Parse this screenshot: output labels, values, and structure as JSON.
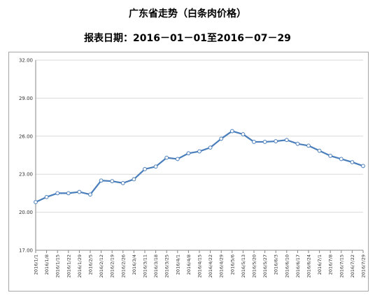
{
  "title": "广东省走势（白条肉价格）",
  "subtitle": "报表日期：2016－01－01至2016－07－29",
  "chart_data": {
    "type": "line",
    "title": "广东省走势（白条肉价格）",
    "subtitle": "报表日期：2016－01－01至2016－07－29",
    "xlabel": "",
    "ylabel": "",
    "ylim": [
      17.0,
      32.0
    ],
    "yticks": [
      "17.00",
      "20.00",
      "23.00",
      "26.00",
      "29.00",
      "32.00"
    ],
    "grid": "horizontal",
    "legend": "none",
    "line_color": "#4a7ebb",
    "categories": [
      "2016/1/1",
      "2016/1/8",
      "2016/1/15",
      "2016/1/22",
      "2016/1/29",
      "2016/2/5",
      "2016/2/12",
      "2016/2/19",
      "2016/2/26",
      "2016/3/4",
      "2016/3/11",
      "2016/3/18",
      "2016/3/25",
      "2016/4/1",
      "2016/4/8",
      "2016/4/15",
      "2016/4/22",
      "2016/4/29",
      "2016/5/6",
      "2016/5/13",
      "2016/5/20",
      "2016/5/27",
      "2016/6/3",
      "2016/6/10",
      "2016/6/17",
      "2016/6/24",
      "2016/7/1",
      "2016/7/8",
      "2016/7/15",
      "2016/7/22",
      "2016/7/29"
    ],
    "values": [
      20.8,
      21.2,
      21.5,
      21.5,
      21.6,
      21.4,
      22.5,
      22.45,
      22.3,
      22.6,
      23.4,
      23.6,
      24.3,
      24.2,
      24.65,
      24.8,
      25.1,
      25.8,
      26.4,
      26.15,
      25.55,
      25.55,
      25.6,
      25.7,
      25.4,
      25.25,
      24.85,
      24.45,
      24.2,
      23.95,
      23.65
    ]
  }
}
